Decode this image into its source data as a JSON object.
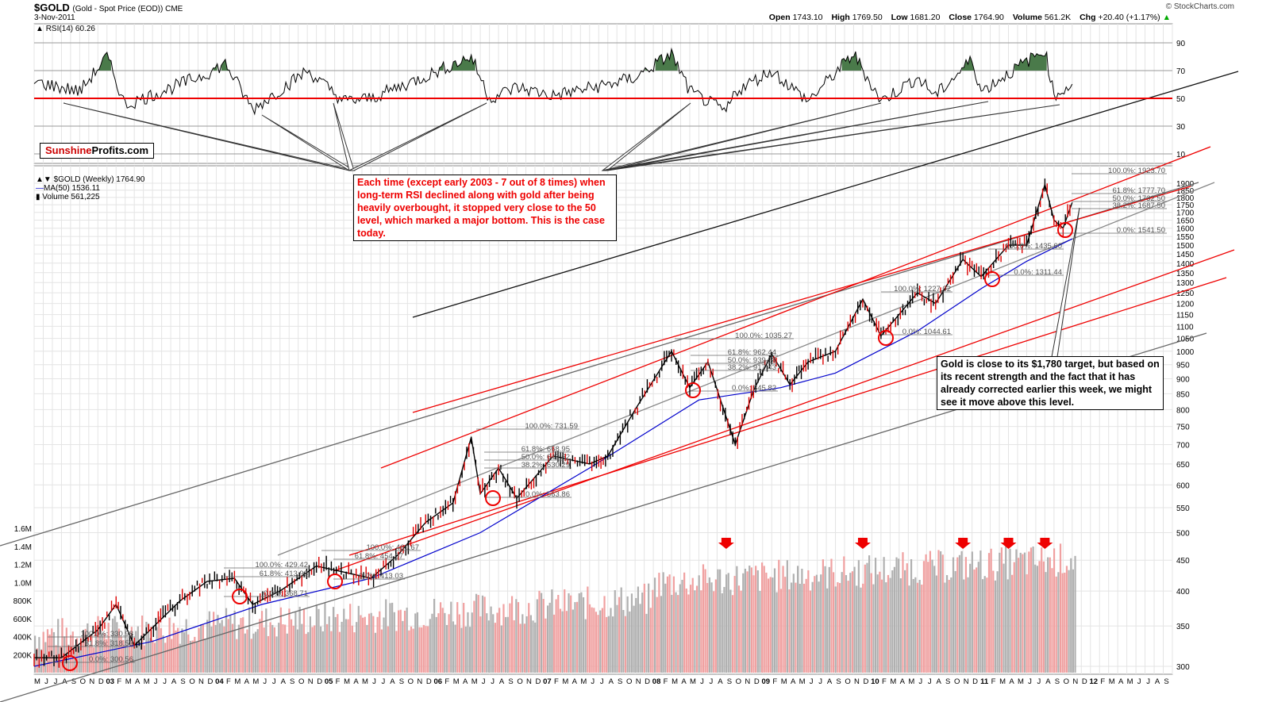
{
  "header": {
    "ticker": "$GOLD",
    "ticker_sub": "(Gold - Spot Price (EOD))  CME",
    "date": "3-Nov-2011",
    "open_label": "Open",
    "open": "1743.10",
    "high_label": "High",
    "high": "1769.50",
    "low_label": "Low",
    "low": "1681.20",
    "close_label": "Close",
    "close": "1764.90",
    "volume_label": "Volume",
    "volume": "561.2K",
    "chg_label": "Chg",
    "chg": "+20.40 (+1.17%)",
    "credit": "© StockCharts.com"
  },
  "rsi_panel": {
    "label": "RSI(14) 60.26",
    "levels": [
      "90",
      "70",
      "50",
      "30",
      "10"
    ]
  },
  "legend": {
    "price": "$GOLD (Weekly) 1764.90",
    "ma": "MA(50) 1536.11",
    "volume": "Volume 561,225"
  },
  "logo": {
    "part1": "Sunshine",
    "part2": "Profits.com"
  },
  "annotations": {
    "rsi_note": "Each time (except early 2003 - 7 out of 8 times) when long-term RSI declined along with gold after being heavily overbought, it stopped very close to the 50 level, which marked a major bottom. This is the case today.",
    "target_note": "Gold is close to its $1,780 target, but based on its recent strength and the fact that it has already corrected earlier this week, we might see it move above this level."
  },
  "colors": {
    "up_bar": "#000000",
    "down_bar": "#dd0000",
    "ma_line": "#0000cc",
    "red_channel": "#ee0000",
    "gray_channel": "#808080",
    "volume_up": "#b0b0b0",
    "volume_down": "#f0a0a0",
    "rsi_overbought_fill": "#4a7a4a"
  },
  "chart_data": {
    "type": "line",
    "price_scale": "log",
    "price_ticks": [
      300,
      350,
      400,
      450,
      500,
      550,
      600,
      650,
      700,
      750,
      800,
      850,
      900,
      950,
      1000,
      1050,
      1100,
      1150,
      1200,
      1250,
      1300,
      1350,
      1400,
      1450,
      1500,
      1550,
      1600,
      1650,
      1700,
      1750,
      1800,
      1850,
      1900
    ],
    "volume_ticks": [
      "200K",
      "400K",
      "600K",
      "800K",
      "1.0M",
      "1.2M",
      "1.4M",
      "1.6M"
    ],
    "rsi_ticks": [
      10,
      30,
      50,
      70,
      90
    ],
    "x_axis_years": [
      "03",
      "04",
      "05",
      "06",
      "07",
      "08",
      "09",
      "10",
      "11",
      "12"
    ],
    "x_axis_month_letters": [
      "M",
      "J",
      "J",
      "A",
      "S",
      "O",
      "N",
      "D",
      "03",
      "F",
      "M",
      "A",
      "M",
      "J",
      "J",
      "A",
      "S",
      "O",
      "N",
      "D",
      "04",
      "F",
      "M",
      "A",
      "M",
      "J",
      "J",
      "A",
      "S",
      "O",
      "N",
      "D",
      "05",
      "F",
      "M",
      "A",
      "M",
      "J",
      "J",
      "A",
      "S",
      "O",
      "N",
      "D",
      "06",
      "F",
      "M",
      "A",
      "M",
      "J",
      "J",
      "A",
      "S",
      "O",
      "N",
      "D",
      "07",
      "F",
      "M",
      "A",
      "M",
      "J",
      "J",
      "A",
      "S",
      "O",
      "N",
      "D",
      "08",
      "F",
      "M",
      "A",
      "M",
      "J",
      "J",
      "A",
      "S",
      "O",
      "N",
      "D",
      "09",
      "F",
      "M",
      "A",
      "M",
      "J",
      "J",
      "A",
      "S",
      "O",
      "N",
      "D",
      "10",
      "F",
      "M",
      "A",
      "M",
      "J",
      "J",
      "A",
      "S",
      "O",
      "N",
      "D",
      "11",
      "F",
      "M",
      "A",
      "M",
      "J",
      "J",
      "A",
      "S",
      "O",
      "N",
      "D",
      "12",
      "F",
      "M",
      "A",
      "M",
      "J",
      "J",
      "A",
      "S"
    ],
    "price_series": {
      "x": [
        "2002-05",
        "2002-08",
        "2002-12",
        "2003-02",
        "2003-04",
        "2003-09",
        "2003-12",
        "2004-03",
        "2004-05",
        "2004-08",
        "2004-12",
        "2005-03",
        "2005-06",
        "2005-09",
        "2005-12",
        "2006-03",
        "2006-05",
        "2006-06",
        "2006-08",
        "2006-10",
        "2007-02",
        "2007-06",
        "2007-08",
        "2007-11",
        "2008-03",
        "2008-05",
        "2008-07",
        "2008-10",
        "2008-12",
        "2009-02",
        "2009-04",
        "2009-06",
        "2009-09",
        "2009-12",
        "2010-02",
        "2010-06",
        "2010-08",
        "2010-11",
        "2011-01",
        "2011-04",
        "2011-06",
        "2011-08",
        "2011-09",
        "2011-10",
        "2011-11"
      ],
      "y": [
        310,
        310,
        345,
        380,
        325,
        385,
        415,
        420,
        380,
        400,
        440,
        430,
        420,
        460,
        520,
        560,
        720,
        580,
        640,
        570,
        670,
        650,
        670,
        800,
        1000,
        870,
        960,
        700,
        860,
        990,
        880,
        960,
        1000,
        1220,
        1060,
        1250,
        1200,
        1420,
        1330,
        1500,
        1500,
        1890,
        1650,
        1600,
        1764.9
      ]
    },
    "ma50_series": {
      "x": [
        "2002-05",
        "2003-06",
        "2004-06",
        "2005-06",
        "2006-06",
        "2007-06",
        "2008-06",
        "2009-03",
        "2009-09",
        "2010-06",
        "2011-01",
        "2011-06",
        "2011-11"
      ],
      "y": [
        300,
        330,
        380,
        420,
        500,
        640,
        830,
        870,
        920,
        1080,
        1270,
        1410,
        1536.11
      ]
    },
    "fib_levels": [
      {
        "label": "100.0%: 1923.70"
      },
      {
        "label": "61.8%: 1777.70"
      },
      {
        "label": "50.0%: 1732.50"
      },
      {
        "label": "38.2%: 1687.50"
      },
      {
        "label": "0.0%: 1541.50"
      },
      {
        "label": "100.0%: 1435.60"
      },
      {
        "label": "0.0%: 1311.44"
      },
      {
        "label": "100.0%: 1227.02"
      },
      {
        "label": "0.0%: 1044.61"
      },
      {
        "label": "100.0%: 1035.27"
      },
      {
        "label": "61.8%: 962.44"
      },
      {
        "label": "50.0%: 939.94"
      },
      {
        "label": "38.2%: 917.43"
      },
      {
        "label": "0.0%: 845.82"
      },
      {
        "label": "100.0%: 731.59"
      },
      {
        "label": "61.8%: 668.95"
      },
      {
        "label": "50.0%: 649.62"
      },
      {
        "label": "38.2%: 630.29"
      },
      {
        "label": "0.0%: 563.86"
      },
      {
        "label": "100.0%: 460.67"
      },
      {
        "label": "61.8%: 454.07"
      },
      {
        "label": "0.0%: 413.03"
      },
      {
        "label": "100.0%: 429.42"
      },
      {
        "label": "61.8%: 413.98"
      },
      {
        "label": "0.0%: 368.71"
      },
      {
        "label": "100.0%: 330.98"
      },
      {
        "label": "61.8%: 318.53"
      },
      {
        "label": "0.0%: 300.56"
      }
    ],
    "rsi_series": {
      "x": [
        "2002-05",
        "2002-10",
        "2003-01",
        "2003-03",
        "2003-09",
        "2003-12",
        "2004-02",
        "2004-05",
        "2004-11",
        "2005-03",
        "2005-06",
        "2005-12",
        "2006-05",
        "2006-07",
        "2006-10",
        "2007-02",
        "2007-08",
        "2007-11",
        "2008-03",
        "2008-05",
        "2008-09",
        "2008-10",
        "2009-02",
        "2009-06",
        "2009-11",
        "2010-02",
        "2010-06",
        "2010-08",
        "2010-12",
        "2011-01",
        "2011-04",
        "2011-08",
        "2011-09",
        "2011-11"
      ],
      "y": [
        62,
        55,
        80,
        45,
        60,
        68,
        75,
        42,
        70,
        48,
        50,
        66,
        80,
        50,
        58,
        52,
        60,
        65,
        82,
        55,
        40,
        55,
        70,
        48,
        82,
        48,
        65,
        52,
        78,
        55,
        68,
        85,
        52,
        60.26
      ]
    },
    "rsi_overbought_level": 70,
    "rsi_support_level": 50,
    "volume_arrow_months": [
      "2008-09",
      "2009-12",
      "2010-11",
      "2011-04",
      "2011-08"
    ]
  }
}
